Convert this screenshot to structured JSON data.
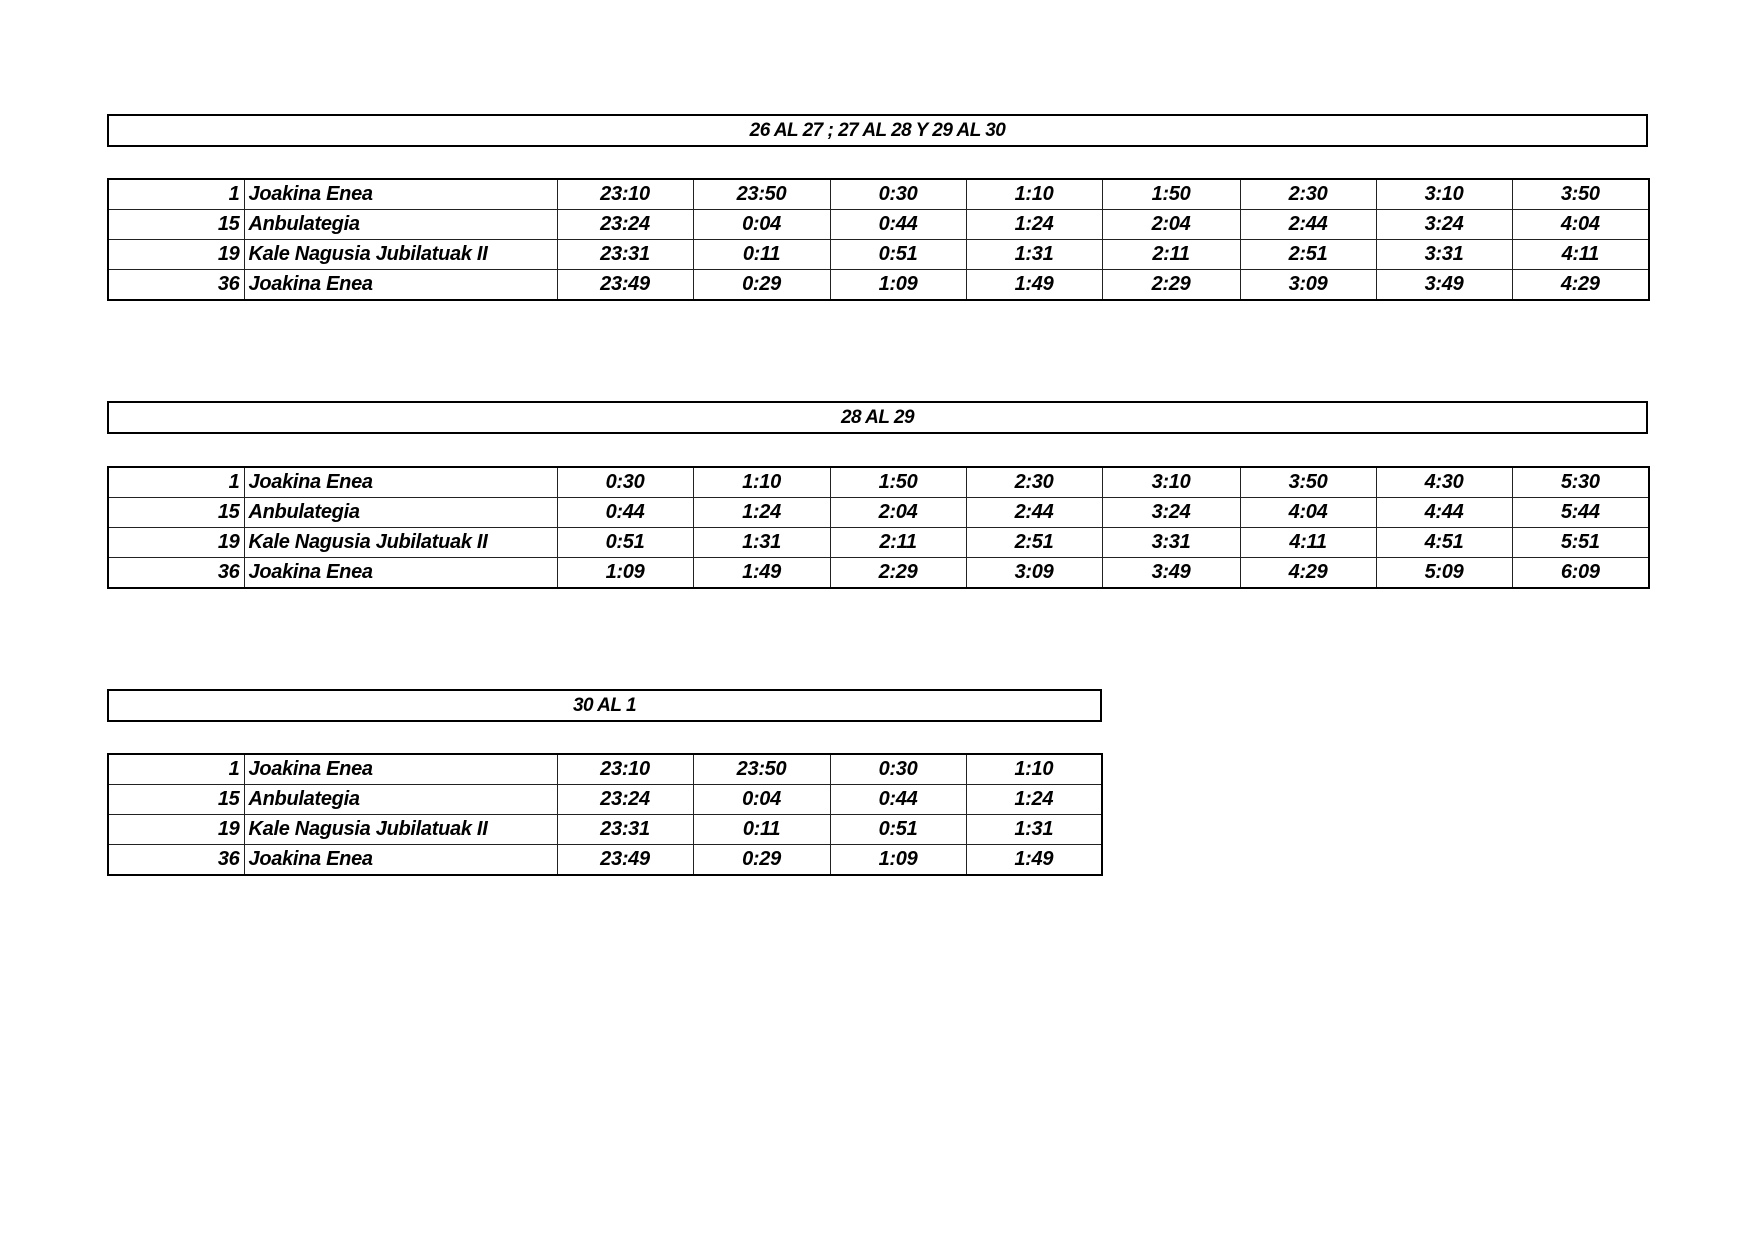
{
  "sections": [
    {
      "title": "26 AL 27 ; 27 AL 28 Y 29 AL 30",
      "rows": [
        {
          "num": "1",
          "stop": "Joakina Enea",
          "times": [
            "23:10",
            "23:50",
            "0:30",
            "1:10",
            "1:50",
            "2:30",
            "3:10",
            "3:50"
          ]
        },
        {
          "num": "15",
          "stop": "Anbulategia",
          "times": [
            "23:24",
            "0:04",
            "0:44",
            "1:24",
            "2:04",
            "2:44",
            "3:24",
            "4:04"
          ]
        },
        {
          "num": "19",
          "stop": "Kale Nagusia Jubilatuak II",
          "times": [
            "23:31",
            "0:11",
            "0:51",
            "1:31",
            "2:11",
            "2:51",
            "3:31",
            "4:11"
          ]
        },
        {
          "num": "36",
          "stop": "Joakina Enea",
          "times": [
            "23:49",
            "0:29",
            "1:09",
            "1:49",
            "2:29",
            "3:09",
            "3:49",
            "4:29"
          ]
        }
      ]
    },
    {
      "title": "28 AL 29",
      "rows": [
        {
          "num": "1",
          "stop": "Joakina Enea",
          "times": [
            "0:30",
            "1:10",
            "1:50",
            "2:30",
            "3:10",
            "3:50",
            "4:30",
            "5:30"
          ]
        },
        {
          "num": "15",
          "stop": "Anbulategia",
          "times": [
            "0:44",
            "1:24",
            "2:04",
            "2:44",
            "3:24",
            "4:04",
            "4:44",
            "5:44"
          ]
        },
        {
          "num": "19",
          "stop": "Kale Nagusia Jubilatuak II",
          "times": [
            "0:51",
            "1:31",
            "2:11",
            "2:51",
            "3:31",
            "4:11",
            "4:51",
            "5:51"
          ]
        },
        {
          "num": "36",
          "stop": "Joakina Enea",
          "times": [
            "1:09",
            "1:49",
            "2:29",
            "3:09",
            "3:49",
            "4:29",
            "5:09",
            "6:09"
          ]
        }
      ]
    },
    {
      "title": "30 AL 1",
      "rows": [
        {
          "num": "1",
          "stop": "Joakina Enea",
          "times": [
            "23:10",
            "23:50",
            "0:30",
            "1:10"
          ]
        },
        {
          "num": "15",
          "stop": "Anbulategia",
          "times": [
            "23:24",
            "0:04",
            "0:44",
            "1:24"
          ]
        },
        {
          "num": "19",
          "stop": "Kale Nagusia Jubilatuak II",
          "times": [
            "23:31",
            "0:11",
            "0:51",
            "1:31"
          ]
        },
        {
          "num": "36",
          "stop": "Joakina Enea",
          "times": [
            "23:49",
            "0:29",
            "1:09",
            "1:49"
          ]
        }
      ]
    }
  ]
}
